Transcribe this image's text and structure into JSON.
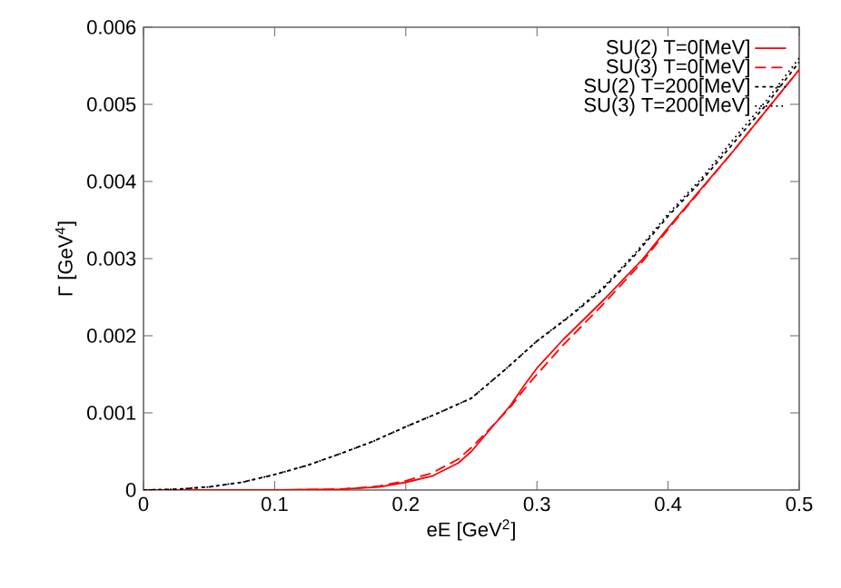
{
  "chart_data": {
    "type": "line",
    "xlabel": "eE [GeV$^{2}$]",
    "ylabel": "Γ [GeV$^{4}$]",
    "xlim": [
      0,
      0.5
    ],
    "ylim": [
      0,
      0.006
    ],
    "xticks": [
      0,
      0.1,
      0.2,
      0.3,
      0.4,
      0.5
    ],
    "yticks": [
      0,
      0.001,
      0.002,
      0.003,
      0.004,
      0.005,
      0.006
    ],
    "grid": false,
    "legend": "top right",
    "marker": "none",
    "series": [
      {
        "name": "SU(2) T=0[MeV]",
        "color": "#ff0000",
        "line_style": "solid",
        "x": [
          0,
          0.05,
          0.1,
          0.15,
          0.18,
          0.2,
          0.22,
          0.24,
          0.25,
          0.26,
          0.27,
          0.28,
          0.29,
          0.3,
          0.32,
          0.35,
          0.38,
          0.4,
          0.45,
          0.5
        ],
        "values": [
          0,
          0,
          0,
          1e-05,
          4e-05,
          0.0001,
          0.00018,
          0.00035,
          0.0005,
          0.0007,
          0.0009,
          0.0011,
          0.00135,
          0.00158,
          0.00195,
          0.00245,
          0.00298,
          0.0034,
          0.0044,
          0.00545
        ]
      },
      {
        "name": "SU(3) T=0[MeV]",
        "color": "#ff0000",
        "line_style": "dashed",
        "x": [
          0,
          0.05,
          0.1,
          0.15,
          0.18,
          0.2,
          0.22,
          0.24,
          0.25,
          0.26,
          0.27,
          0.28,
          0.29,
          0.3,
          0.32,
          0.35,
          0.38,
          0.4,
          0.45,
          0.5
        ],
        "values": [
          0,
          0,
          0,
          1e-05,
          5e-05,
          0.00012,
          0.00022,
          0.0004,
          0.00055,
          0.00072,
          0.0009,
          0.00108,
          0.0013,
          0.0015,
          0.00188,
          0.0024,
          0.00295,
          0.00338,
          0.0044,
          0.00545
        ]
      },
      {
        "name": "SU(2) T=200[MeV]",
        "color": "#000000",
        "line_style": "dashed",
        "x": [
          0,
          0.025,
          0.05,
          0.075,
          0.1,
          0.125,
          0.15,
          0.175,
          0.2,
          0.225,
          0.25,
          0.275,
          0.3,
          0.325,
          0.35,
          0.375,
          0.4,
          0.425,
          0.45,
          0.475,
          0.5
        ],
        "values": [
          0,
          1e-05,
          4e-05,
          0.0001,
          0.0002,
          0.00032,
          0.00047,
          0.00063,
          0.00082,
          0.001,
          0.00119,
          0.00155,
          0.00193,
          0.00225,
          0.0026,
          0.00305,
          0.00355,
          0.004,
          0.0045,
          0.005,
          0.00555
        ]
      },
      {
        "name": "SU(3) T=200[MeV]",
        "color": "#000000",
        "line_style": "dotted",
        "x": [
          0,
          0.025,
          0.05,
          0.075,
          0.1,
          0.125,
          0.15,
          0.175,
          0.2,
          0.225,
          0.25,
          0.275,
          0.3,
          0.325,
          0.35,
          0.375,
          0.4,
          0.425,
          0.45,
          0.475,
          0.5
        ],
        "values": [
          0,
          1e-05,
          4e-05,
          0.0001,
          0.0002,
          0.00032,
          0.00047,
          0.00063,
          0.00082,
          0.001,
          0.00119,
          0.00155,
          0.00193,
          0.00226,
          0.00262,
          0.00307,
          0.00358,
          0.00403,
          0.00455,
          0.00505,
          0.0056
        ]
      }
    ]
  }
}
